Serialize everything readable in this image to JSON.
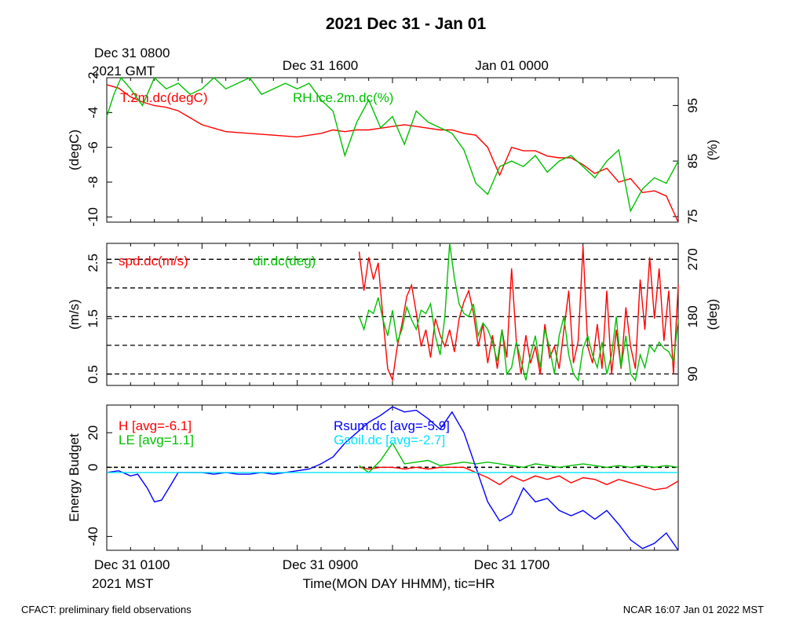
{
  "title": "2021 Dec 31 - Jan 01",
  "top_axis": {
    "ticks": [
      "Dec 31 0800",
      "Dec 31 1600",
      "Jan 01 0000"
    ],
    "sub": "2021 GMT"
  },
  "bottom_axis": {
    "ticks": [
      "Dec 31 0100",
      "Dec 31 0900",
      "Dec 31 1700"
    ],
    "sub": "2021 MST",
    "xlabel": "Time(MON DAY HHMM), tic=HR"
  },
  "footer": {
    "left": "CFACT: preliminary field observations",
    "right": "NCAR 16:07 Jan 01 2022 MST"
  },
  "colors": {
    "red": "#ff0000",
    "green": "#00c000",
    "blue": "#0000ff",
    "cyan": "#00e5ff"
  },
  "chart_data": [
    {
      "type": "line",
      "title": "",
      "x_range_hours_mst": [
        0,
        24
      ],
      "left_axis": {
        "label": "(degC)",
        "ylim": [
          -10.3,
          -2
        ],
        "ticks": [
          -10,
          -8,
          -6,
          -4,
          -2
        ]
      },
      "right_axis": {
        "label": "(%)",
        "ylim": [
          74,
          100
        ],
        "ticks": [
          75,
          85,
          95
        ]
      },
      "series": [
        {
          "name": "T.2m.dc(degC)",
          "color": "#ff0000",
          "axis": "left",
          "x": [
            0,
            0.5,
            1,
            1.5,
            2,
            2.5,
            3,
            3.5,
            4,
            4.5,
            5,
            6,
            7,
            8,
            9,
            9.5,
            10,
            10.5,
            11,
            11.5,
            12,
            12.5,
            13,
            13.5,
            14,
            14.5,
            15,
            15.5,
            16,
            16.5,
            17,
            17.5,
            18,
            18.5,
            19,
            19.5,
            20,
            20.5,
            21,
            21.5,
            22,
            22.5,
            23,
            23.5,
            24
          ],
          "y": [
            -2.4,
            -2.6,
            -3.1,
            -3.4,
            -3.6,
            -3.7,
            -3.9,
            -4.3,
            -4.7,
            -4.9,
            -5.1,
            -5.2,
            -5.3,
            -5.4,
            -5.2,
            -5.0,
            -5.1,
            -5.0,
            -5.0,
            -4.9,
            -4.8,
            -4.7,
            -4.8,
            -4.9,
            -5.0,
            -5.0,
            -5.2,
            -5.3,
            -6.0,
            -7.6,
            -6.0,
            -6.2,
            -6.2,
            -6.5,
            -6.6,
            -6.6,
            -7.0,
            -7.5,
            -7.2,
            -8.0,
            -7.8,
            -8.6,
            -8.5,
            -8.8,
            -10.3
          ]
        },
        {
          "name": "RH.ice.2m.dc(%)",
          "color": "#00c000",
          "axis": "right",
          "x": [
            0,
            0.3,
            0.6,
            1,
            1.5,
            2,
            2.5,
            3,
            3.5,
            4,
            4.5,
            5,
            5.5,
            6,
            6.5,
            7,
            7.5,
            8,
            8.5,
            9,
            9.5,
            10,
            10.5,
            11,
            11.5,
            12,
            12.5,
            13,
            13.5,
            14,
            14.5,
            15,
            15.5,
            16,
            16.5,
            17,
            17.5,
            18,
            18.5,
            19,
            19.5,
            20,
            20.5,
            21,
            21.5,
            22,
            22.5,
            23,
            23.5,
            24
          ],
          "y": [
            93,
            97,
            100,
            98,
            95,
            100,
            98,
            99,
            97,
            98,
            100,
            98,
            99,
            100,
            97,
            98,
            99,
            98,
            99,
            96,
            94,
            86,
            92,
            96,
            91,
            93,
            88,
            94,
            92,
            91,
            90,
            87,
            81,
            79,
            84,
            85,
            84,
            86,
            83,
            85,
            86,
            84,
            82,
            85,
            87,
            76,
            80,
            82,
            81,
            85
          ]
        }
      ]
    },
    {
      "type": "line",
      "title": "",
      "x_range_hours_mst": [
        0,
        24
      ],
      "left_axis": {
        "label": "(m/s)",
        "ylim": [
          0.3,
          2.85
        ],
        "ticks": [
          0.5,
          1.5,
          2.5
        ]
      },
      "right_axis": {
        "label": "(deg)",
        "ylim": [
          72,
          295
        ],
        "ticks": [
          90,
          180,
          270
        ]
      },
      "reference_lines_deg": [
        90,
        135,
        180,
        225,
        270
      ],
      "series": [
        {
          "name": "spd.dc(m/s)",
          "color": "#ff0000",
          "axis": "left",
          "x": [
            10.6,
            10.8,
            11,
            11.2,
            11.4,
            11.6,
            11.8,
            12,
            12.2,
            12.4,
            12.6,
            12.8,
            13,
            13.2,
            13.4,
            13.6,
            13.8,
            14,
            14.2,
            14.4,
            14.6,
            14.8,
            15,
            15.2,
            15.4,
            15.6,
            15.8,
            16,
            16.2,
            16.4,
            16.6,
            16.8,
            17,
            17.2,
            17.4,
            17.6,
            17.8,
            18,
            18.2,
            18.4,
            18.6,
            18.8,
            19,
            19.2,
            19.4,
            19.6,
            19.8,
            20,
            20.2,
            20.4,
            20.6,
            20.8,
            21,
            21.2,
            21.4,
            21.6,
            21.8,
            22,
            22.2,
            22.4,
            22.6,
            22.8,
            23,
            23.2,
            23.4,
            23.6,
            23.8,
            24
          ],
          "y": [
            2.7,
            2.0,
            2.6,
            2.2,
            2.5,
            1.5,
            0.6,
            0.4,
            1.0,
            1.4,
            1.9,
            2.1,
            1.6,
            1.0,
            1.3,
            0.8,
            1.5,
            1.2,
            1.0,
            1.3,
            0.9,
            1.5,
            1.8,
            2.0,
            1.6,
            1.0,
            1.4,
            0.7,
            1.2,
            0.6,
            1.3,
            0.8,
            2.4,
            1.1,
            0.5,
            1.2,
            0.7,
            1.0,
            0.5,
            1.4,
            0.8,
            1.0,
            0.6,
            1.3,
            2.0,
            0.7,
            1.1,
            2.8,
            1.0,
            0.7,
            1.4,
            0.6,
            2.0,
            0.5,
            1.3,
            0.6,
            1.7,
            1.0,
            0.6,
            2.2,
            1.3,
            2.6,
            1.5,
            2.4,
            1.1,
            2.0,
            0.5,
            2.1
          ]
        },
        {
          "name": "dir.dc(deg)",
          "color": "#00c000",
          "axis": "right",
          "x": [
            10.6,
            10.8,
            11,
            11.2,
            11.4,
            11.6,
            11.8,
            12,
            12.2,
            12.4,
            12.6,
            12.8,
            13,
            13.2,
            13.4,
            13.6,
            13.8,
            14,
            14.2,
            14.4,
            14.6,
            14.8,
            15,
            15.2,
            15.4,
            15.6,
            15.8,
            16,
            16.2,
            16.4,
            16.6,
            16.8,
            17,
            17.2,
            17.4,
            17.6,
            17.8,
            18,
            18.2,
            18.4,
            18.6,
            18.8,
            19,
            19.2,
            19.4,
            19.6,
            19.8,
            20,
            20.2,
            20.4,
            20.6,
            20.8,
            21,
            21.2,
            21.4,
            21.6,
            21.8,
            22,
            22.2,
            22.4,
            22.6,
            22.8,
            23,
            23.2,
            23.4,
            23.6,
            23.8,
            24
          ],
          "y": [
            180,
            160,
            190,
            185,
            210,
            175,
            150,
            190,
            140,
            160,
            195,
            175,
            160,
            190,
            185,
            200,
            150,
            120,
            180,
            295,
            240,
            200,
            185,
            180,
            200,
            150,
            170,
            160,
            140,
            110,
            160,
            90,
            100,
            140,
            110,
            80,
            120,
            150,
            100,
            160,
            130,
            90,
            150,
            180,
            120,
            90,
            80,
            130,
            150,
            120,
            100,
            140,
            90,
            120,
            180,
            100,
            150,
            90,
            80,
            120,
            100,
            135,
            125,
            140,
            130,
            125,
            110,
            175
          ]
        }
      ]
    },
    {
      "type": "line",
      "title": "",
      "x_range_hours_mst": [
        0,
        24
      ],
      "left_axis": {
        "label": "Energy Budget",
        "ylim": [
          -48,
          36
        ],
        "ticks": [
          -40,
          0,
          20
        ]
      },
      "reference_lines": [
        0
      ],
      "series": [
        {
          "name": "H [avg=-6.1]",
          "color": "#ff0000",
          "x": [
            10.6,
            11,
            11.5,
            12,
            12.5,
            13,
            13.5,
            14,
            14.5,
            15,
            15.5,
            16,
            16.5,
            17,
            17.5,
            18,
            18.5,
            19,
            19.5,
            20,
            20.5,
            21,
            21.5,
            22,
            22.5,
            23,
            23.5,
            24
          ],
          "y": [
            0,
            -1,
            0,
            0,
            -1,
            0,
            -1,
            0,
            0,
            0,
            -3,
            -6,
            -10,
            -5,
            -8,
            -5,
            -7,
            -5,
            -9,
            -6,
            -7,
            -10,
            -7,
            -9,
            -11,
            -13,
            -12,
            -8
          ]
        },
        {
          "name": "LE [avg=1.1]",
          "color": "#00c000",
          "x": [
            10.6,
            11,
            11.5,
            12,
            12.5,
            13,
            13.5,
            14,
            14.5,
            15,
            15.5,
            16,
            16.5,
            17,
            17.5,
            18,
            18.5,
            19,
            19.5,
            20,
            20.5,
            21,
            21.5,
            22,
            22.5,
            23,
            23.5,
            24
          ],
          "y": [
            1,
            -3,
            4,
            14,
            2,
            3,
            4,
            1,
            2,
            3,
            2,
            3,
            2,
            1,
            0,
            2,
            1,
            0,
            1,
            2,
            1,
            0,
            1,
            0,
            1,
            0,
            1,
            0
          ]
        },
        {
          "name": "Rsum.dc [avg=-5.9]",
          "color": "#0000ff",
          "x": [
            0,
            0.5,
            1,
            1.3,
            1.7,
            2,
            2.3,
            2.7,
            3,
            3.5,
            4,
            4.5,
            5,
            5.5,
            6,
            6.5,
            7,
            7.5,
            8,
            8.5,
            9,
            9.5,
            10,
            10.5,
            11,
            11.5,
            12,
            12.5,
            13,
            13.5,
            14,
            14.5,
            15,
            15.5,
            16,
            16.5,
            17,
            17.5,
            18,
            18.5,
            19,
            19.5,
            20,
            20.5,
            21,
            21.5,
            22,
            22.5,
            23,
            23.5,
            24
          ],
          "y": [
            -3,
            -2,
            -5,
            -4,
            -12,
            -20,
            -19,
            -10,
            -3,
            -3,
            -3,
            -4,
            -3,
            -4,
            -4,
            -3,
            -4,
            -3,
            -2,
            -1,
            2,
            6,
            14,
            20,
            26,
            30,
            35,
            32,
            33,
            28,
            22,
            32,
            20,
            0,
            -20,
            -31,
            -27,
            -12,
            -20,
            -18,
            -25,
            -28,
            -25,
            -30,
            -25,
            -33,
            -42,
            -47,
            -44,
            -38,
            -48
          ]
        },
        {
          "name": "Gsoil.dc [avg=-2.7]",
          "color": "#00e5ff",
          "x": [
            0,
            24
          ],
          "y": [
            -3,
            -3
          ]
        }
      ]
    }
  ]
}
